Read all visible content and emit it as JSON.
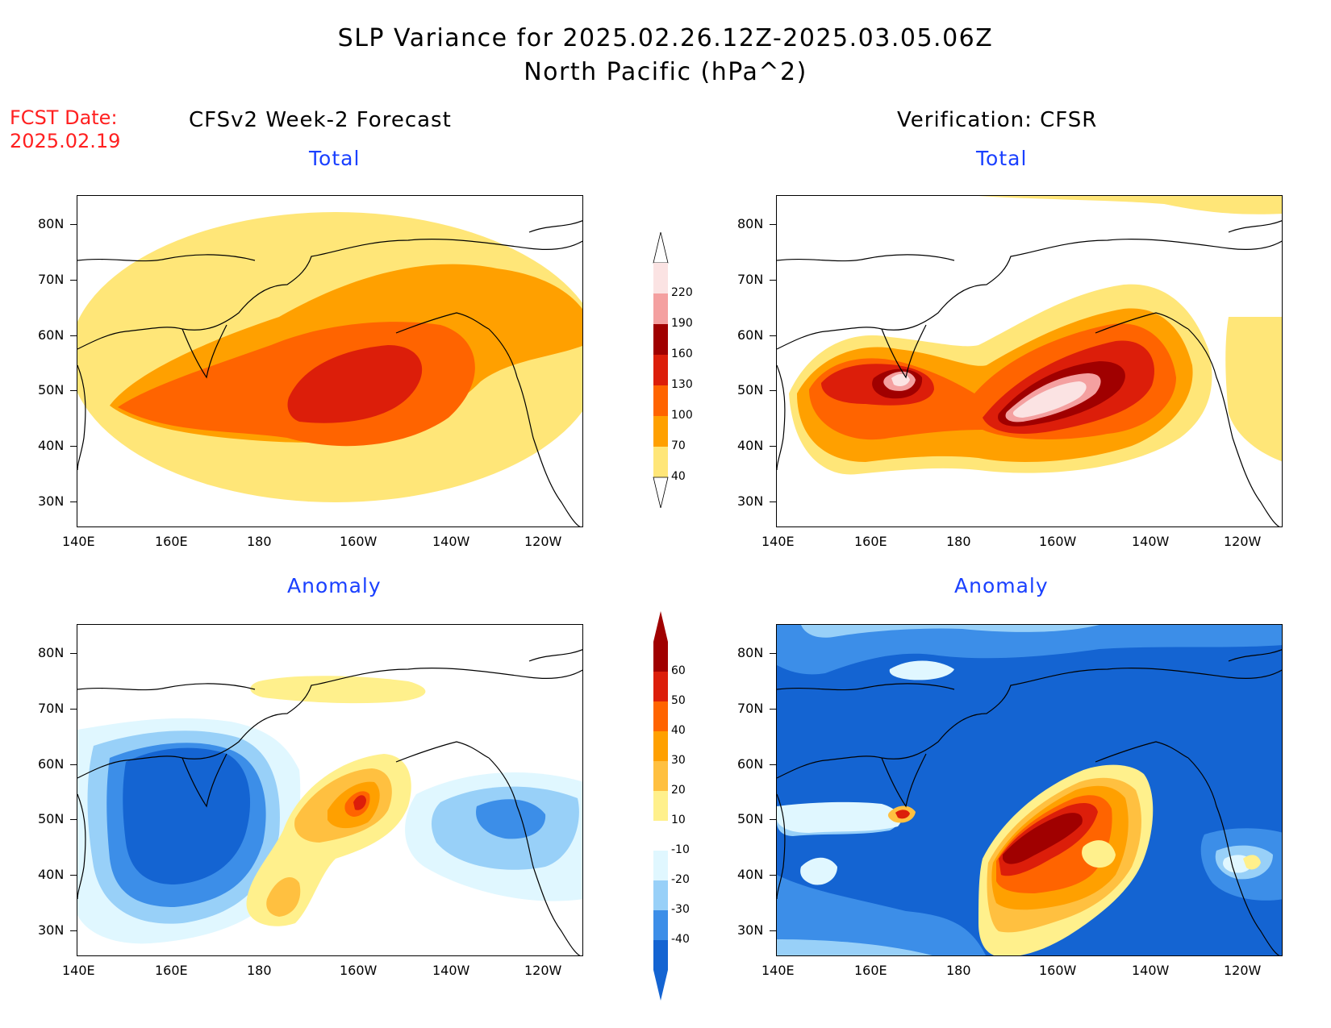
{
  "header": {
    "title": "SLP Variance for 2025.02.26.12Z-2025.03.05.06Z",
    "subtitle": "North Pacific (hPa^2)",
    "fcst_line1": "FCST Date:",
    "fcst_line2": "2025.02.19"
  },
  "columns": {
    "left_title": "CFSv2 Week-2 Forecast",
    "right_title": "Verification: CFSR"
  },
  "panels": {
    "total_label": "Total",
    "anomaly_label": "Anomaly"
  },
  "axes": {
    "lat_ticks": [
      "80N",
      "70N",
      "60N",
      "50N",
      "40N",
      "30N"
    ],
    "lon_ticks": [
      "140E",
      "160E",
      "180",
      "160W",
      "140W",
      "120W"
    ]
  },
  "colorbars": {
    "total": {
      "labels": [
        "220",
        "190",
        "160",
        "130",
        "100",
        "70",
        "40"
      ],
      "colors": [
        "#fbe3e3",
        "#f4a0a0",
        "#a00000",
        "#dc1e0a",
        "#ff6400",
        "#ffa000",
        "#ffe678"
      ]
    },
    "anomaly": {
      "labels": [
        "60",
        "50",
        "40",
        "30",
        "20",
        "10",
        "-10",
        "-20",
        "-30",
        "-40"
      ],
      "colors": [
        "#a00000",
        "#dc1e0a",
        "#ff6400",
        "#ffa000",
        "#ffc040",
        "#fff08c",
        "#ffffff",
        "#e0f7ff",
        "#98d0f8",
        "#3c8ee8",
        "#1464d2"
      ]
    }
  }
}
